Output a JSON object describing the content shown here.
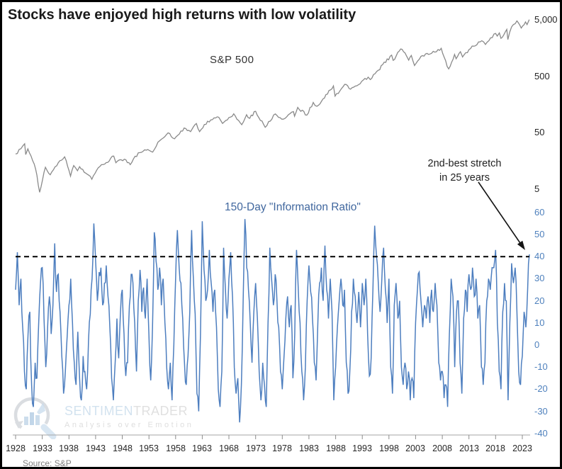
{
  "title": "Stocks have enjoyed high returns with low volatility",
  "source_note": "Source: S&P",
  "watermark": {
    "brand_part1": "SENTIMEN",
    "brand_part2": "TRADER",
    "tagline": "Analysis over Emotion"
  },
  "annotation": {
    "line1": "2nd-best stretch",
    "line2": "in 25 years"
  },
  "colors": {
    "sp500_line": "#8a8a8a",
    "ir_line": "#4d7ebf",
    "ir_axis_text": "#4f81bd",
    "top_axis_text": "#262626",
    "threshold_line": "#000000",
    "axis_line": "#a6a6a6",
    "tick_mark": "#8c8c8c",
    "arrow": "#141414"
  },
  "x_axis": {
    "tick_years": [
      1928,
      1933,
      1938,
      1943,
      1948,
      1953,
      1958,
      1963,
      1968,
      1973,
      1978,
      1983,
      1988,
      1993,
      1998,
      2003,
      2008,
      2013,
      2018,
      2023
    ]
  },
  "chart_data": [
    {
      "id": "sp500",
      "type": "line",
      "title": "S&P 500",
      "yscale": "log",
      "ylim": [
        4,
        6000
      ],
      "legend_position": "inside-top-left",
      "grid": false,
      "yticks": [
        {
          "value": 5,
          "label": "5"
        },
        {
          "value": 50,
          "label": "50"
        },
        {
          "value": 500,
          "label": "500"
        },
        {
          "value": 5000,
          "label": "5,000"
        }
      ],
      "points": [
        [
          1928.0,
          21
        ],
        [
          1929.0,
          26
        ],
        [
          1929.7,
          31.9
        ],
        [
          1929.9,
          20.5
        ],
        [
          1930.3,
          25.9
        ],
        [
          1931.5,
          13.9
        ],
        [
          1932.0,
          8.8
        ],
        [
          1932.5,
          4.4
        ],
        [
          1933.6,
          12.2
        ],
        [
          1934.5,
          9.0
        ],
        [
          1936.0,
          14.7
        ],
        [
          1937.2,
          18.7
        ],
        [
          1938.3,
          8.5
        ],
        [
          1938.9,
          13.1
        ],
        [
          1939.6,
          10.6
        ],
        [
          1940.0,
          12.5
        ],
        [
          1942.3,
          7.5
        ],
        [
          1943.5,
          12.0
        ],
        [
          1945.0,
          14.8
        ],
        [
          1946.4,
          19.3
        ],
        [
          1946.8,
          14.7
        ],
        [
          1948.4,
          17.0
        ],
        [
          1949.5,
          13.6
        ],
        [
          1951.0,
          22.0
        ],
        [
          1952.5,
          24.5
        ],
        [
          1953.7,
          22.7
        ],
        [
          1955.0,
          36.0
        ],
        [
          1956.6,
          49.7
        ],
        [
          1957.8,
          39.0
        ],
        [
          1959.6,
          60.5
        ],
        [
          1960.8,
          52.3
        ],
        [
          1961.9,
          72.6
        ],
        [
          1962.5,
          52.3
        ],
        [
          1964.0,
          80.0
        ],
        [
          1966.1,
          94.0
        ],
        [
          1966.8,
          73.2
        ],
        [
          1968.9,
          108.0
        ],
        [
          1970.4,
          69.3
        ],
        [
          1971.3,
          104.0
        ],
        [
          1971.9,
          90.0
        ],
        [
          1973.0,
          120.0
        ],
        [
          1974.8,
          62.3
        ],
        [
          1976.7,
          107.8
        ],
        [
          1978.2,
          86.9
        ],
        [
          1980.1,
          118.0
        ],
        [
          1980.3,
          98.2
        ],
        [
          1980.9,
          140.5
        ],
        [
          1982.6,
          102.4
        ],
        [
          1983.8,
          172.0
        ],
        [
          1984.5,
          147.0
        ],
        [
          1987.6,
          337.0
        ],
        [
          1987.9,
          223.0
        ],
        [
          1989.7,
          359.0
        ],
        [
          1990.8,
          295.0
        ],
        [
          1994.1,
          482.0
        ],
        [
          1994.5,
          438.0
        ],
        [
          1996.0,
          640.0
        ],
        [
          1998.5,
          1186.0
        ],
        [
          1998.8,
          957.0
        ],
        [
          2000.2,
          1527.0
        ],
        [
          2001.0,
          1300.0
        ],
        [
          2001.7,
          965.0
        ],
        [
          2002.2,
          1170.0
        ],
        [
          2002.8,
          776.0
        ],
        [
          2004.0,
          1130.0
        ],
        [
          2006.0,
          1280.0
        ],
        [
          2007.8,
          1565.0
        ],
        [
          2008.9,
          750.0
        ],
        [
          2009.2,
          677.0
        ],
        [
          2010.3,
          1217.0
        ],
        [
          2010.6,
          1022.0
        ],
        [
          2011.4,
          1363.0
        ],
        [
          2011.8,
          1099.0
        ],
        [
          2013.0,
          1480.0
        ],
        [
          2015.4,
          2130.0
        ],
        [
          2016.1,
          1829.0
        ],
        [
          2018.0,
          2872.0
        ],
        [
          2018.3,
          2581.0
        ],
        [
          2018.7,
          2930.0
        ],
        [
          2019.0,
          2351.0
        ],
        [
          2020.1,
          3386.0
        ],
        [
          2020.3,
          2237.0
        ],
        [
          2021.0,
          3756.0
        ],
        [
          2022.0,
          4796.0
        ],
        [
          2022.8,
          3577.0
        ],
        [
          2023.6,
          4589.0
        ],
        [
          2023.9,
          4117.0
        ],
        [
          2024.3,
          5050.0
        ]
      ]
    },
    {
      "id": "information_ratio",
      "type": "line",
      "title": "150-Day \"Information Ratio\"",
      "ylim": [
        -40,
        60
      ],
      "grid": false,
      "yticks": [
        60,
        50,
        40,
        30,
        20,
        10,
        0,
        -10,
        -20,
        -30,
        -40
      ],
      "threshold": {
        "value": 40,
        "style": "dashed",
        "note": "2nd-best stretch in 25 years"
      },
      "x_start": 1928.0,
      "x_step": 0.33333,
      "values": [
        25,
        42,
        18,
        30,
        8,
        -12,
        -20,
        5,
        15,
        -18,
        -28,
        -8,
        -15,
        10,
        28,
        35,
        12,
        -10,
        8,
        22,
        5,
        18,
        46,
        24,
        32,
        15,
        -5,
        -22,
        -12,
        4,
        18,
        30,
        10,
        -8,
        -18,
        6,
        -15,
        -25,
        -5,
        -12,
        -20,
        2,
        14,
        30,
        55,
        38,
        20,
        33,
        35,
        18,
        28,
        36,
        22,
        8,
        -15,
        -25,
        -8,
        12,
        -6,
        15,
        25,
        5,
        -14,
        -8,
        18,
        32,
        28,
        10,
        -12,
        20,
        34,
        15,
        26,
        12,
        30,
        5,
        -16,
        8,
        51,
        38,
        25,
        35,
        18,
        30,
        10,
        -10,
        -20,
        -8,
        -25,
        0,
        30,
        52,
        35,
        28,
        12,
        -8,
        -18,
        -5,
        15,
        52,
        30,
        14,
        -22,
        -30,
        5,
        56,
        34,
        20,
        25,
        43,
        28,
        15,
        25,
        8,
        -20,
        -28,
        -12,
        44,
        26,
        12,
        30,
        42,
        22,
        -10,
        -22,
        -15,
        -35,
        -18,
        20,
        57,
        35,
        25,
        10,
        -8,
        15,
        28,
        12,
        -12,
        -25,
        -8,
        -18,
        -28,
        10,
        44,
        30,
        18,
        32,
        20,
        8,
        -12,
        -20,
        -5,
        12,
        22,
        8,
        18,
        -15,
        5,
        43,
        25,
        10,
        -12,
        -25,
        -10,
        20,
        36,
        24,
        12,
        -8,
        -16,
        10,
        28,
        35,
        20,
        45,
        25,
        12,
        30,
        15,
        -25,
        -10,
        8,
        20,
        30,
        18,
        25,
        -8,
        -22,
        -12,
        15,
        30,
        22,
        10,
        24,
        8,
        28,
        18,
        30,
        5,
        -14,
        -6,
        25,
        54,
        40,
        28,
        15,
        30,
        44,
        25,
        10,
        30,
        -10,
        -22,
        18,
        28,
        12,
        20,
        -10,
        -18,
        -8,
        -20,
        -12,
        -25,
        -15,
        -24,
        10,
        25,
        33,
        20,
        8,
        18,
        12,
        22,
        10,
        25,
        15,
        28,
        18,
        -8,
        -16,
        -12,
        -24,
        -18,
        -28,
        5,
        30,
        22,
        -10,
        15,
        20,
        -8,
        -22,
        12,
        25,
        15,
        32,
        25,
        35,
        22,
        30,
        12,
        18,
        -10,
        -18,
        -8,
        20,
        30,
        25,
        35,
        35,
        43,
        10,
        -12,
        -20,
        15,
        28,
        20,
        -25,
        10,
        37,
        28,
        35,
        15,
        -12,
        -18,
        -5,
        15,
        8,
        25,
        41
      ]
    }
  ]
}
